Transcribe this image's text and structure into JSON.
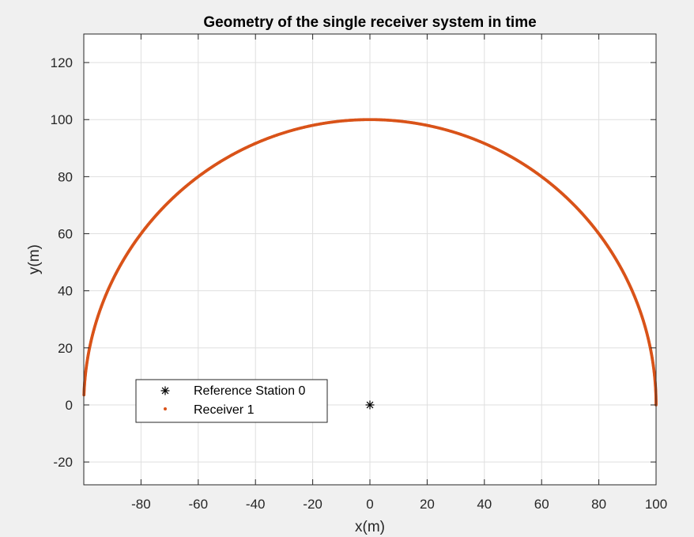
{
  "chart_data": {
    "type": "scatter",
    "title": "Geometry of the single receiver system in time",
    "xlabel": "x(m)",
    "ylabel": "y(m)",
    "xlim": [
      -100,
      100
    ],
    "ylim": [
      -28,
      130
    ],
    "xticks": [
      -80,
      -60,
      -40,
      -20,
      0,
      20,
      40,
      60,
      80,
      100
    ],
    "yticks": [
      -20,
      0,
      20,
      40,
      60,
      80,
      100,
      120
    ],
    "grid": true,
    "legend_position": "bottom-left",
    "series": [
      {
        "name": "Reference Station 0",
        "marker": "asterisk",
        "color": "#000000",
        "points": [
          [
            0,
            0
          ]
        ]
      },
      {
        "name": "Receiver 1",
        "marker": "dot",
        "color": "#d95319",
        "trajectory": "semicircle",
        "center": [
          0,
          0
        ],
        "radius": 100,
        "angle_range_deg": [
          0,
          178
        ]
      }
    ]
  }
}
